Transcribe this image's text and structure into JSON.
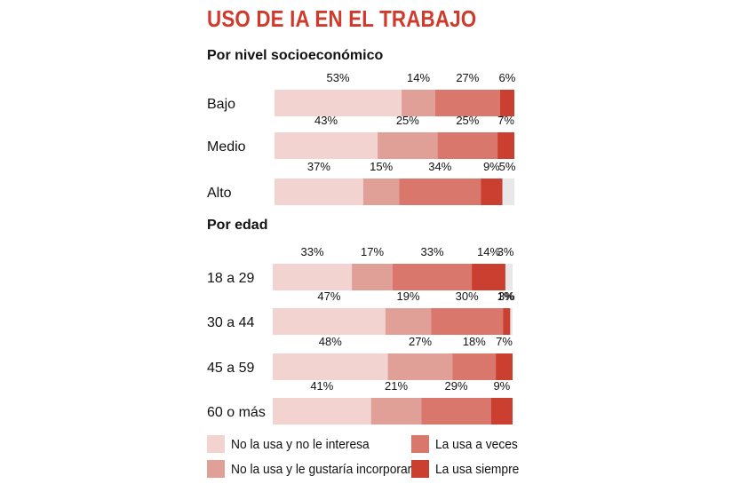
{
  "title": "USO DE IA EN EL TRABAJO",
  "colors": {
    "no_interesa": "#f2d3d0",
    "gustaria": "#e09f97",
    "a_veces": "#d9776c",
    "siempre": "#ca3f30",
    "remainder": "#e8e8e8",
    "title": "#d03a2b"
  },
  "legend": [
    {
      "key": "no_interesa",
      "label": "No la usa y no le interesa"
    },
    {
      "key": "gustaria",
      "label": "No la usa y le gustaría incorporarla"
    },
    {
      "key": "a_veces",
      "label": "La usa a veces"
    },
    {
      "key": "siempre",
      "label": "La usa siempre"
    }
  ],
  "chart_data": [
    {
      "type": "bar",
      "stacked": true,
      "orientation": "horizontal",
      "title": "Por nivel socioeconómico",
      "categories": [
        "Bajo",
        "Medio",
        "Alto"
      ],
      "series": [
        {
          "name": "No la usa y no le interesa",
          "values": [
            53,
            43,
            37
          ]
        },
        {
          "name": "No la usa y le gustaría incorporarla",
          "values": [
            14,
            25,
            15
          ]
        },
        {
          "name": "La usa a veces",
          "values": [
            27,
            25,
            34
          ]
        },
        {
          "name": "La usa siempre",
          "values": [
            6,
            7,
            9
          ]
        }
      ],
      "extra_labels": {
        "Alto": "5%"
      },
      "unit": "%"
    },
    {
      "type": "bar",
      "stacked": true,
      "orientation": "horizontal",
      "title": "Por edad",
      "categories": [
        "18 a 29",
        "30 a 44",
        "45 a 59",
        "60 o más"
      ],
      "series": [
        {
          "name": "No la usa y no le interesa",
          "values": [
            33,
            47,
            48,
            41
          ]
        },
        {
          "name": "No la usa y le gustaría incorporarla",
          "values": [
            17,
            19,
            27,
            21
          ]
        },
        {
          "name": "La usa a veces",
          "values": [
            33,
            30,
            18,
            29
          ]
        },
        {
          "name": "La usa siempre",
          "values": [
            14,
            3,
            7,
            9
          ]
        }
      ],
      "extra_labels": {
        "18 a 29": "3%",
        "30 a 44": "1%"
      },
      "unit": "%"
    }
  ]
}
